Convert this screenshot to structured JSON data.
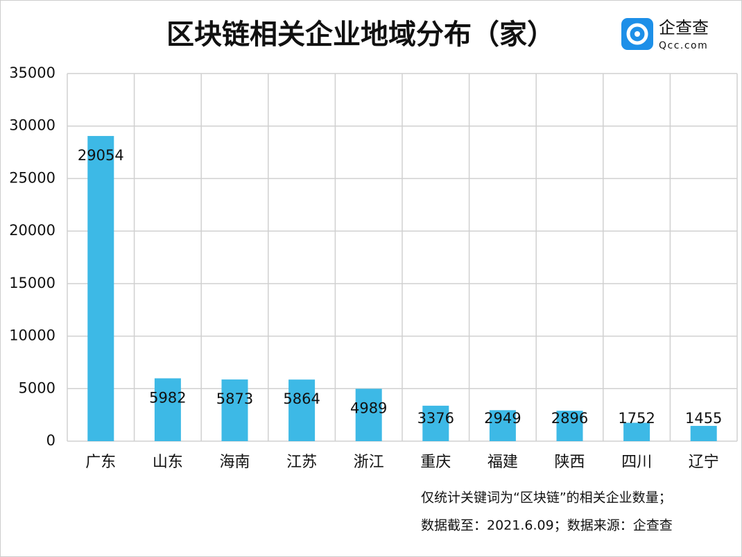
{
  "chart_data": {
    "type": "bar",
    "title": "区块链相关企业地域分布（家）",
    "categories": [
      "广东",
      "山东",
      "海南",
      "江苏",
      "浙江",
      "重庆",
      "福建",
      "陕西",
      "四川",
      "辽宁"
    ],
    "values": [
      29054,
      5982,
      5873,
      5864,
      4989,
      3376,
      2949,
      2896,
      1752,
      1455
    ],
    "color": "#3db9e6",
    "ylim": [
      0,
      35000
    ],
    "yticks": [
      0,
      5000,
      10000,
      15000,
      20000,
      25000,
      30000,
      35000
    ],
    "grid": true,
    "notes": [
      "仅统计关键词为“区块链”的相关企业数量；",
      "数据截至：2021.6.09；数据来源：企查查"
    ]
  },
  "brand": {
    "name": "企查查",
    "domain": "Qcc.com"
  }
}
